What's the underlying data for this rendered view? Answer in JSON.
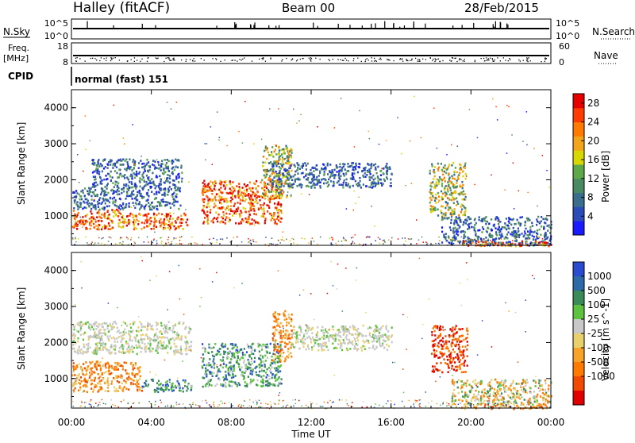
{
  "header": {
    "station": "Halley (fitACF)",
    "beam": "Beam 00",
    "date": "28/Feb/2015"
  },
  "strips": {
    "nsky_label": "N.Sky",
    "nsky_ticks": [
      "10^5",
      "10^0"
    ],
    "nsearch_label": "N.Search",
    "nsearch_ticks": [
      "10^5",
      "10^0"
    ],
    "freq_label": "Freq.",
    "freq_unit": "[MHz]",
    "freq_ticks": [
      "18",
      "8"
    ],
    "nave_label": "Nave",
    "nave_ticks": [
      "60",
      "0"
    ],
    "cpid_label": "CPID",
    "cpid_value": "normal (fast) 151"
  },
  "colors": {
    "power_scale": [
      "#1a1aff",
      "#2b4cb8",
      "#3a6e8c",
      "#4a8a62",
      "#5fa84a",
      "#d8d800",
      "#f2a51a",
      "#ff7a00",
      "#ff3b00",
      "#e60000"
    ],
    "velocity_scale": [
      "#2a4bd0",
      "#2f6aa8",
      "#3b8a5a",
      "#5cc240",
      "#c8c8c8",
      "#e9d06a",
      "#f7a229",
      "#ff7a00",
      "#f04b00",
      "#e10000"
    ]
  },
  "chart_data": [
    {
      "type": "heatmap",
      "title": "Power",
      "xlabel": "Time UT",
      "ylabel": "Slant Range [km]",
      "xlim": [
        "00:00",
        "24:00"
      ],
      "ylim": [
        180,
        4500
      ],
      "x_ticks": [
        "00:00",
        "04:00",
        "08:00",
        "12:00",
        "16:00",
        "20:00",
        "00:00"
      ],
      "y_ticks": [
        1000,
        2000,
        3000,
        4000
      ],
      "colorbar": {
        "label": "Power [dB]",
        "ticks": [
          4,
          8,
          12,
          16,
          20,
          24,
          28
        ],
        "range": [
          0,
          30
        ]
      },
      "regions": [
        {
          "t": [
            0.0,
            2.4
          ],
          "r": [
            650,
            1200
          ],
          "level": "high"
        },
        {
          "t": [
            2.4,
            5.8
          ],
          "r": [
            650,
            1100
          ],
          "level": "high"
        },
        {
          "t": [
            0.0,
            5.5
          ],
          "r": [
            1200,
            1800
          ],
          "level": "low"
        },
        {
          "t": [
            1.0,
            5.5
          ],
          "r": [
            1800,
            2600
          ],
          "level": "low"
        },
        {
          "t": [
            6.5,
            10.5
          ],
          "r": [
            800,
            2000
          ],
          "level": "high"
        },
        {
          "t": [
            9.5,
            11.0
          ],
          "r": [
            1500,
            3000
          ],
          "level": "medium"
        },
        {
          "t": [
            10.0,
            16.0
          ],
          "r": [
            1800,
            2500
          ],
          "level": "low"
        },
        {
          "t": [
            17.9,
            19.7
          ],
          "r": [
            1000,
            2500
          ],
          "level": "medium"
        },
        {
          "t": [
            18.5,
            24.0
          ],
          "r": [
            200,
            1000
          ],
          "level": "low"
        },
        {
          "t": [
            19.5,
            24.0
          ],
          "r": [
            180,
            320
          ],
          "level": "high"
        }
      ]
    },
    {
      "type": "heatmap",
      "title": "Velocity",
      "xlabel": "Time UT",
      "ylabel": "Slant Range [km]",
      "xlim": [
        "00:00",
        "24:00"
      ],
      "ylim": [
        180,
        4500
      ],
      "x_ticks": [
        "00:00",
        "04:00",
        "08:00",
        "12:00",
        "16:00",
        "20:00",
        "00:00"
      ],
      "y_ticks": [
        1000,
        2000,
        3000,
        4000
      ],
      "colorbar": {
        "label": "Velocity [m s^-1]",
        "ticks": [
          "1000",
          "500",
          "100",
          "25",
          "-25",
          "-100",
          "-500",
          "-1000"
        ]
      },
      "regions": [
        {
          "t": [
            0.0,
            3.5
          ],
          "r": [
            650,
            1500
          ],
          "level": "negative"
        },
        {
          "t": [
            3.5,
            6.0
          ],
          "r": [
            650,
            1000
          ],
          "level": "positive"
        },
        {
          "t": [
            0.0,
            6.0
          ],
          "r": [
            1700,
            2600
          ],
          "level": "near-zero"
        },
        {
          "t": [
            6.5,
            10.5
          ],
          "r": [
            800,
            2000
          ],
          "level": "positive"
        },
        {
          "t": [
            10.0,
            11.0
          ],
          "r": [
            1500,
            2900
          ],
          "level": "negative"
        },
        {
          "t": [
            11.0,
            16.0
          ],
          "r": [
            1800,
            2500
          ],
          "level": "near-zero"
        },
        {
          "t": [
            18.0,
            19.8
          ],
          "r": [
            1200,
            2500
          ],
          "level": "strongly-negative"
        },
        {
          "t": [
            19.0,
            24.0
          ],
          "r": [
            300,
            1000
          ],
          "level": "mixed"
        },
        {
          "t": [
            19.5,
            24.0
          ],
          "r": [
            180,
            320
          ],
          "level": "negative"
        }
      ]
    }
  ]
}
